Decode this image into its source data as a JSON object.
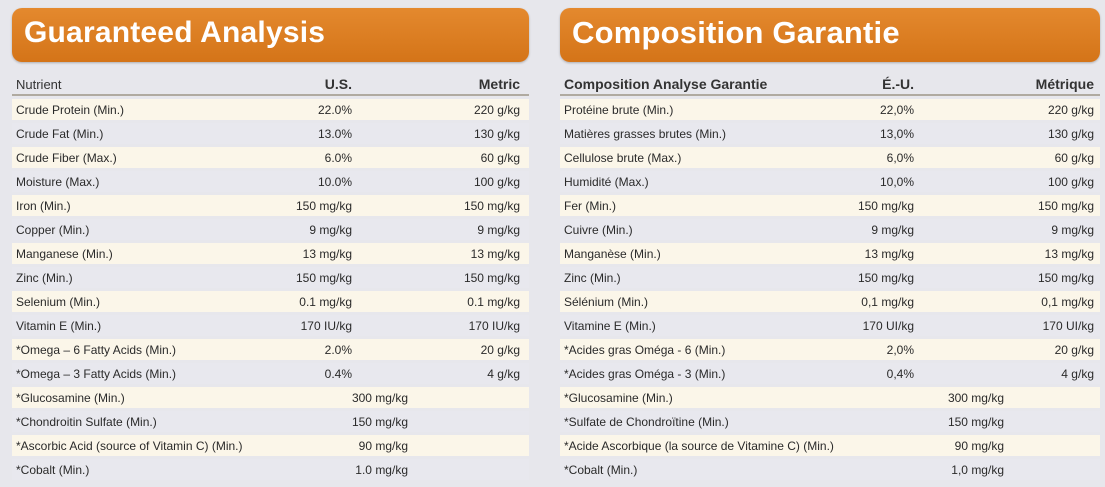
{
  "left": {
    "title": "Guaranteed Analysis",
    "headers": {
      "nutrient": "Nutrient",
      "us": "U.S.",
      "metric": "Metric"
    },
    "rows": [
      {
        "name": "Crude Protein (Min.)",
        "us": "22.0%",
        "metric": "220 g/kg"
      },
      {
        "name": "Crude Fat (Min.)",
        "us": "13.0%",
        "metric": "130 g/kg"
      },
      {
        "name": "Crude Fiber (Max.)",
        "us": "6.0%",
        "metric": "60 g/kg"
      },
      {
        "name": "Moisture (Max.)",
        "us": "10.0%",
        "metric": "100 g/kg"
      },
      {
        "name": "Iron (Min.)",
        "us": "150 mg/kg",
        "metric": "150 mg/kg"
      },
      {
        "name": "Copper (Min.)",
        "us": "9 mg/kg",
        "metric": "9 mg/kg"
      },
      {
        "name": "Manganese (Min.)",
        "us": "13 mg/kg",
        "metric": "13 mg/kg"
      },
      {
        "name": "Zinc (Min.)",
        "us": "150 mg/kg",
        "metric": "150 mg/kg"
      },
      {
        "name": "Selenium (Min.)",
        "us": "0.1 mg/kg",
        "metric": "0.1 mg/kg"
      },
      {
        "name": "Vitamin E (Min.)",
        "us": "170 IU/kg",
        "metric": "170 IU/kg"
      },
      {
        "name": "*Omega – 6 Fatty Acids (Min.)",
        "us": "2.0%",
        "metric": "20 g/kg"
      },
      {
        "name": "*Omega – 3 Fatty Acids (Min.)",
        "us": "0.4%",
        "metric": "4 g/kg"
      },
      {
        "name": "*Glucosamine (Min.)",
        "span": "300 mg/kg"
      },
      {
        "name": "*Chondroitin Sulfate (Min.)",
        "span": "150 mg/kg"
      },
      {
        "name": "*Ascorbic Acid (source of Vitamin C) (Min.)",
        "span": "90 mg/kg"
      },
      {
        "name": "*Cobalt (Min.)",
        "span": "1.0 mg/kg"
      }
    ]
  },
  "right": {
    "title": "Composition Garantie",
    "headers": {
      "nutrient": "Composition Analyse Garantie",
      "us": "É.-U.",
      "metric": "Métrique"
    },
    "rows": [
      {
        "name": "Protéine brute (Min.)",
        "us": "22,0%",
        "metric": "220 g/kg"
      },
      {
        "name": "Matières grasses brutes (Min.)",
        "us": "13,0%",
        "metric": "130 g/kg"
      },
      {
        "name": "Cellulose brute (Max.)",
        "us": "6,0%",
        "metric": "60 g/kg"
      },
      {
        "name": "Humidité (Max.)",
        "us": "10,0%",
        "metric": "100 g/kg"
      },
      {
        "name": "Fer (Min.)",
        "us": "150 mg/kg",
        "metric": "150 mg/kg"
      },
      {
        "name": "Cuivre (Min.)",
        "us": "9 mg/kg",
        "metric": "9 mg/kg"
      },
      {
        "name": "Manganèse (Min.)",
        "us": "13 mg/kg",
        "metric": "13 mg/kg"
      },
      {
        "name": "Zinc (Min.)",
        "us": "150 mg/kg",
        "metric": "150 mg/kg"
      },
      {
        "name": "Sélénium (Min.)",
        "us": "0,1 mg/kg",
        "metric": "0,1 mg/kg"
      },
      {
        "name": "Vitamine E (Min.)",
        "us": "170 UI/kg",
        "metric": "170 UI/kg"
      },
      {
        "name": "*Acides gras Oméga - 6 (Min.)",
        "us": "2,0%",
        "metric": "20 g/kg"
      },
      {
        "name": "*Acides gras Oméga - 3 (Min.)",
        "us": "0,4%",
        "metric": "4 g/kg"
      },
      {
        "name": "*Glucosamine (Min.)",
        "span": "300 mg/kg"
      },
      {
        "name": "*Sulfate de Chondroïtine (Min.)",
        "span": "150 mg/kg"
      },
      {
        "name": "*Acide Ascorbique (la source de Vitamine C) (Min.)",
        "span": "90 mg/kg"
      },
      {
        "name": "*Cobalt (Min.)",
        "span": "1,0 mg/kg"
      }
    ]
  },
  "colors": {
    "banner": "#dc7d22",
    "row_light": "#fbf6e9",
    "row_gray": "#e8e8ee"
  }
}
